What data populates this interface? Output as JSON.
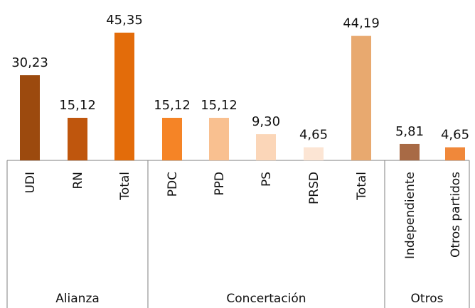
{
  "chart_data": {
    "type": "bar",
    "ylim": [
      0,
      50
    ],
    "groups": [
      {
        "name": "Alianza",
        "bars": [
          {
            "label": "UDI",
            "value": 30.23,
            "value_label": "30,23",
            "color": "#9c4a0e"
          },
          {
            "label": "RN",
            "value": 15.12,
            "value_label": "15,12",
            "color": "#bf560d"
          },
          {
            "label": "Total",
            "value": 45.35,
            "value_label": "45,35",
            "color": "#e36c0a"
          }
        ]
      },
      {
        "name": "Concertación",
        "bars": [
          {
            "label": "PDC",
            "value": 15.12,
            "value_label": "15,12",
            "color": "#f58426"
          },
          {
            "label": "PPD",
            "value": 15.12,
            "value_label": "15,12",
            "color": "#f9c090"
          },
          {
            "label": "PS",
            "value": 9.3,
            "value_label": "9,30",
            "color": "#fbd6b8"
          },
          {
            "label": "PRSD",
            "value": 4.65,
            "value_label": "4,65",
            "color": "#fce5d4"
          },
          {
            "label": "Total",
            "value": 44.19,
            "value_label": "44,19",
            "color": "#e8a96f"
          }
        ]
      },
      {
        "name": "Otros",
        "bars": [
          {
            "label": "Independiente",
            "value": 5.81,
            "value_label": "5,81",
            "color": "#a86a45"
          },
          {
            "label": "Otros partidos",
            "value": 4.65,
            "value_label": "4,65",
            "color": "#f0883a"
          }
        ]
      }
    ]
  }
}
